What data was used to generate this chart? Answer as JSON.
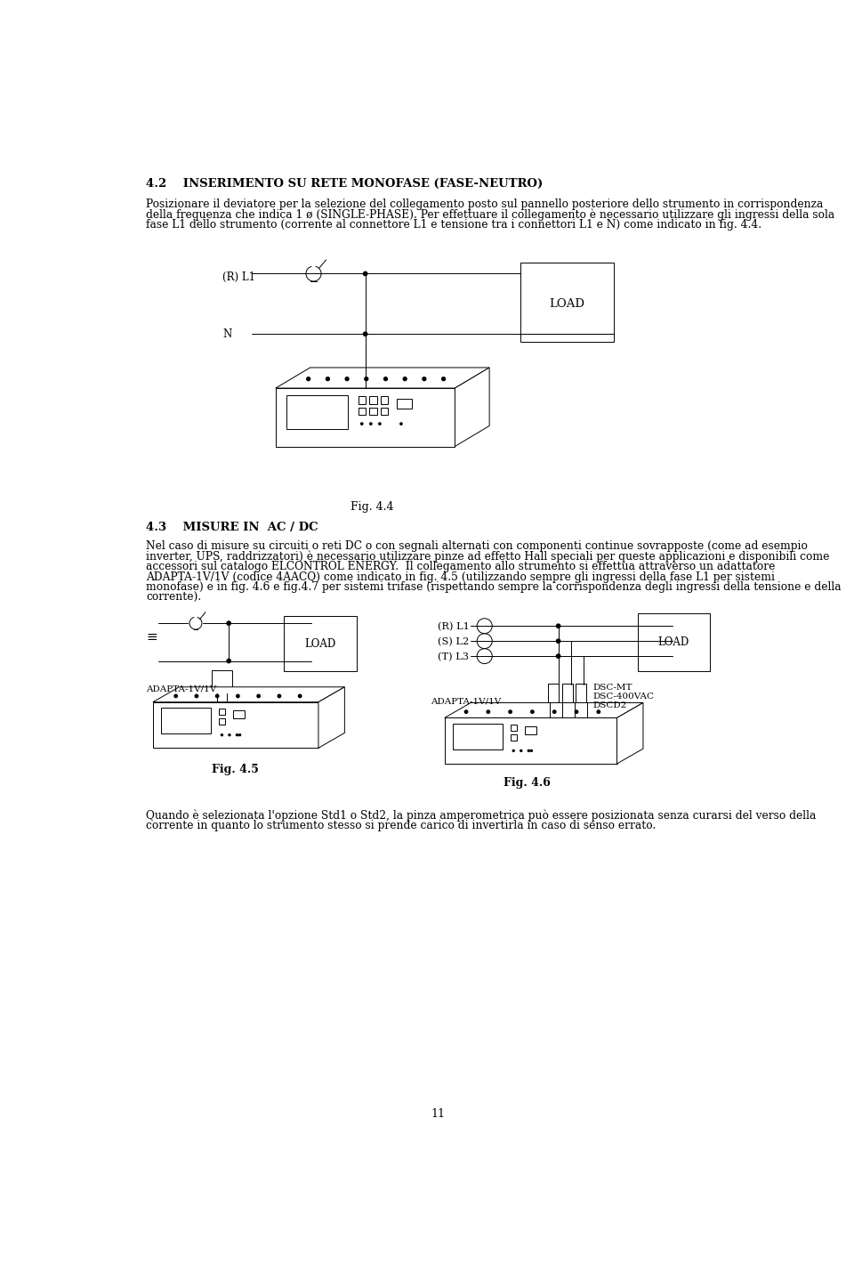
{
  "title_42": "4.2    INSERIMENTO SU RETE MONOFASE (FASE-NEUTRO)",
  "para_42_1": "Posizionare il deviatore per la selezione del collegamento posto sul pannello posteriore dello strumento in corrispondenza",
  "para_42_2": "della frequenza che indica 1 ø (SINGLE-PHASE). Per effettuare il collegamento è necessario utilizzare gli ingressi della sola",
  "para_42_3": "fase L1 dello strumento (corrente al connettore L1 e tensione tra i connettori L1 e N) come indicato in fig. 4.4.",
  "fig44_label": "Fig. 4.4",
  "title_43": "4.3    MISURE IN  AC / DC",
  "para_43_1": "Nel caso di misure su circuiti o reti DC o con segnali alternati con componenti continue sovrapposte (come ad esempio",
  "para_43_2": "inverter, UPS, raddrizzatori) è necessario utilizzare pinze ad effetto Hall speciali per queste applicazioni e disponibili come",
  "para_43_3": "accessori sul catalogo ELCONTROL ENERGY.  Il collegamento allo strumento si effettua attraverso un adattatore",
  "para_43_4": "ADAPTA-1V/1V (codice 4AACQ) come indicato in fig. 4.5 (utilizzando sempre gli ingressi della fase L1 per sistemi",
  "para_43_5": "monofase) e in fig. 4.6 e fig.4.7 per sistemi trifase (rispettando sempre la corrispondenza degli ingressi della tensione e della",
  "para_43_6": "corrente).",
  "fig45_label": "Fig. 4.5",
  "fig46_label": "Fig. 4.6",
  "para_bot_1": "Quando è selezionata l'opzione Std1 o Std2, la pinza amperometrica può essere posizionata senza curarsi del verso della",
  "para_bot_2": "corrente in quanto lo strumento stesso si prende carico di invertirla in caso di senso errato.",
  "page_number": "11",
  "bg": "#ffffff",
  "fg": "#000000"
}
